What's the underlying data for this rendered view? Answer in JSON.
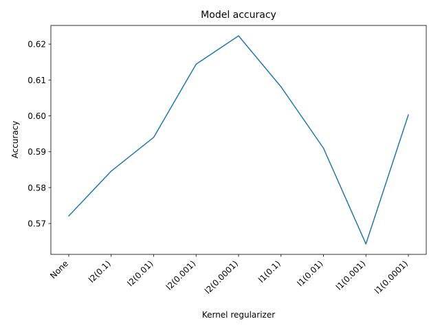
{
  "chart_data": {
    "type": "line",
    "title": "Model accuracy",
    "xlabel": "Kernel regularizer",
    "ylabel": "Accuracy",
    "categories": [
      "None",
      "l2(0.1)",
      "l2(0.01)",
      "l2(0.001)",
      "l2(0.0001)",
      "l1(0.1)",
      "l1(0.01)",
      "l1(0.001)",
      "l1(0.0001)"
    ],
    "series": [
      {
        "values": [
          0.5721,
          0.5846,
          0.594,
          0.6144,
          0.6223,
          0.6081,
          0.591,
          0.5643,
          0.6003
        ],
        "color": "#1f77b4"
      }
    ],
    "yticks": [
      0.57,
      0.58,
      0.59,
      0.6,
      0.61,
      0.62
    ],
    "ytick_labels": [
      "0.57",
      "0.58",
      "0.59",
      "0.60",
      "0.61",
      "0.62"
    ],
    "ylim": [
      0.5614,
      0.6252
    ],
    "grid": false,
    "legend": "none"
  }
}
